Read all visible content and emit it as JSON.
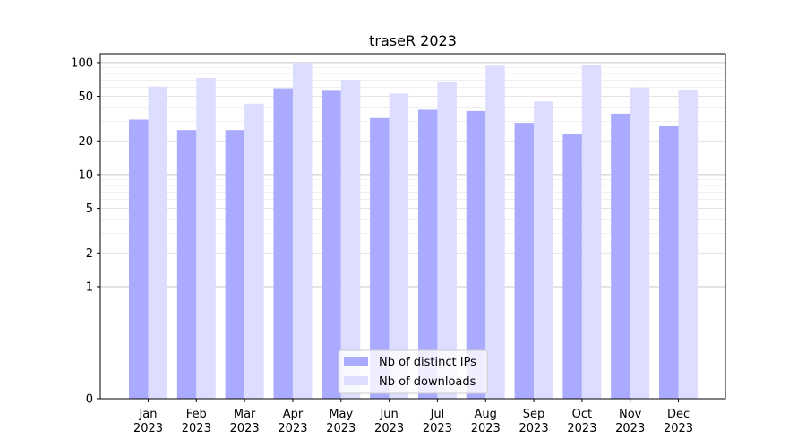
{
  "chart_data": {
    "type": "bar",
    "title": "traseR 2023",
    "xlabel": "",
    "ylabel": "",
    "y_scale": "symlog",
    "ylim": [
      0,
      120
    ],
    "y_ticks": [
      0,
      1,
      2,
      5,
      10,
      20,
      50,
      100
    ],
    "grid": true,
    "legend_position": "bottom-center",
    "categories": [
      "Jan\n2023",
      "Feb\n2023",
      "Mar\n2023",
      "Apr\n2023",
      "May\n2023",
      "Jun\n2023",
      "Jul\n2023",
      "Aug\n2023",
      "Sep\n2023",
      "Oct\n2023",
      "Nov\n2023",
      "Dec\n2023"
    ],
    "series": [
      {
        "name": "Nb of distinct IPs",
        "color": "#aaaaff",
        "values": [
          31,
          25,
          25,
          59,
          56,
          32,
          38,
          37,
          29,
          23,
          35,
          27
        ]
      },
      {
        "name": "Nb of downloads",
        "color": "#ddddff",
        "values": [
          61,
          73,
          43,
          100,
          70,
          53,
          68,
          94,
          45,
          96,
          60,
          57
        ]
      }
    ]
  }
}
